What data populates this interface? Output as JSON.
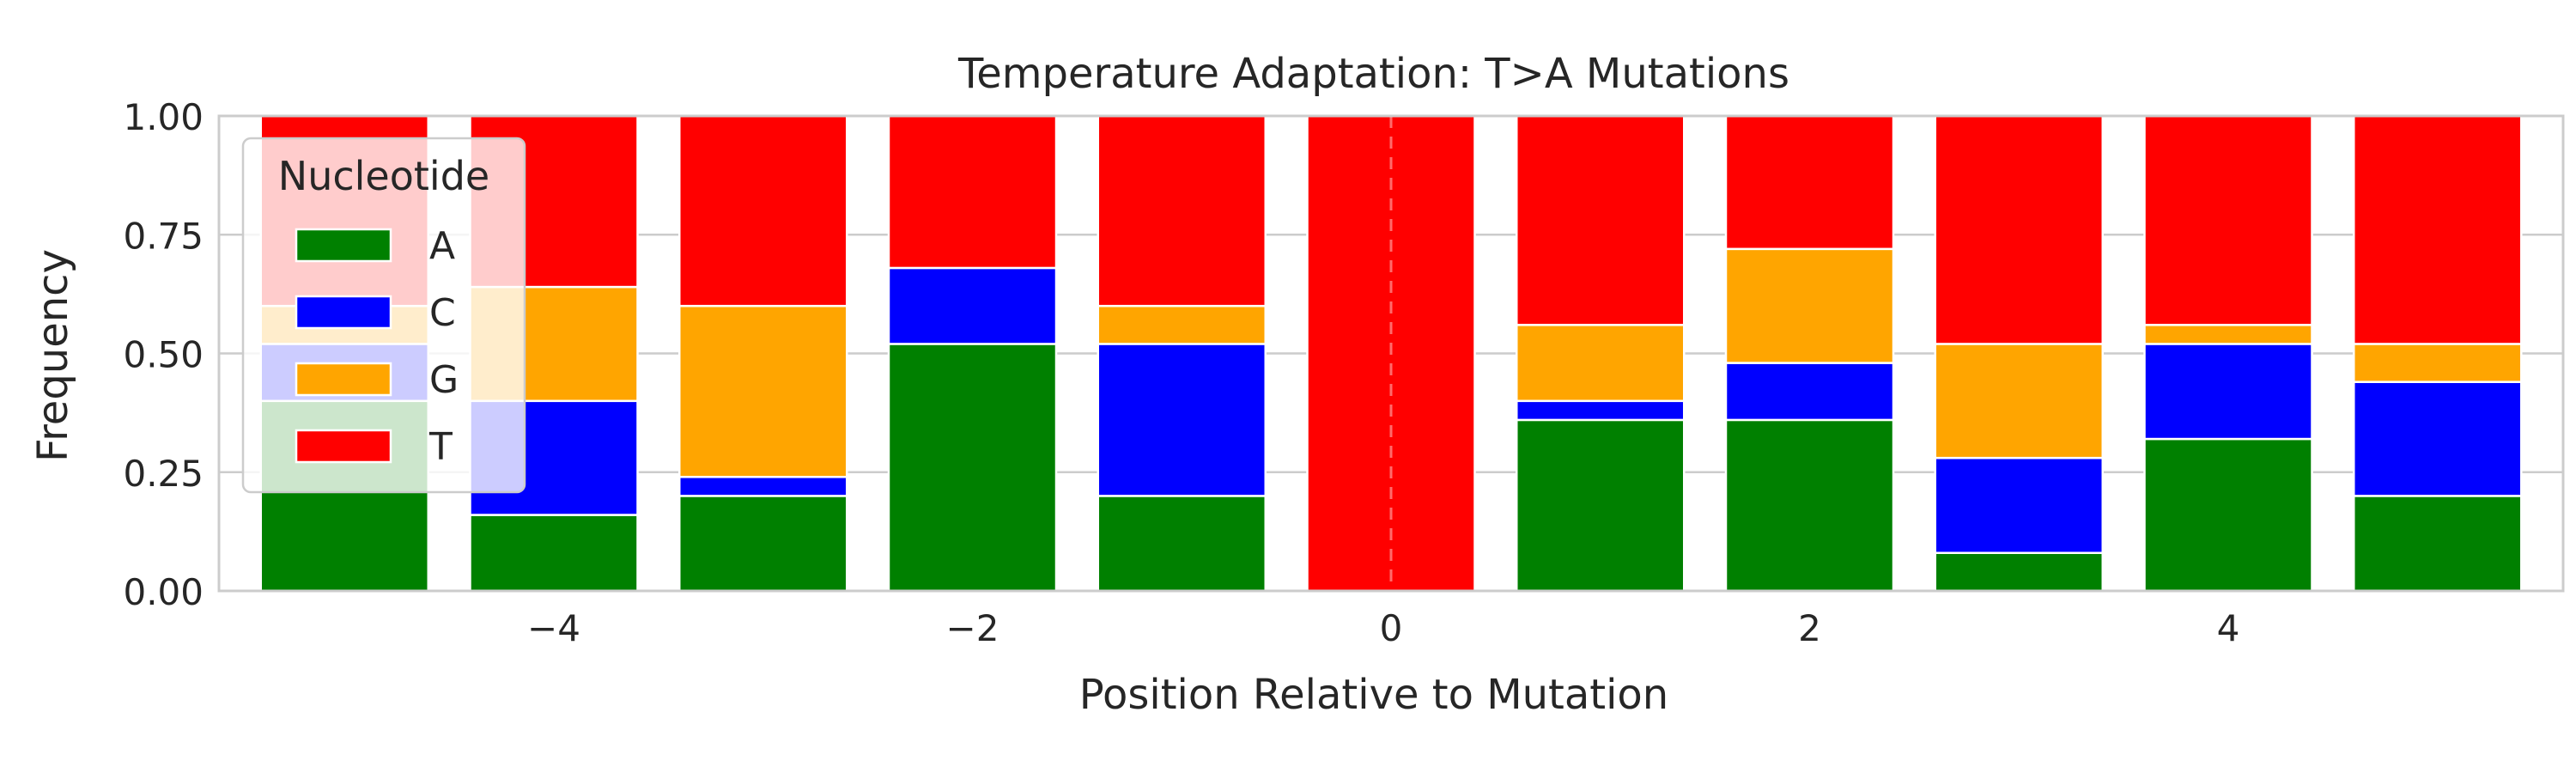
{
  "chart_data": {
    "type": "bar",
    "stacked": true,
    "title": "Temperature Adaptation: T>A Mutations",
    "xlabel": "Position Relative to Mutation",
    "ylabel": "Frequency",
    "x": [
      -5,
      -4,
      -3,
      -2,
      -1,
      0,
      1,
      2,
      3,
      4,
      5
    ],
    "xlim": [
      -5.6,
      5.6
    ],
    "ylim": [
      0,
      1
    ],
    "xticks": [
      -4,
      -2,
      0,
      2,
      4
    ],
    "xtick_labels": [
      "−4",
      "−2",
      "0",
      "2",
      "4"
    ],
    "yticks": [
      0,
      0.25,
      0.5,
      0.75,
      1.0
    ],
    "ytick_labels": [
      "0.00",
      "0.25",
      "0.50",
      "0.75",
      "1.00"
    ],
    "grid": true,
    "mutation_line_x": 0,
    "legend": {
      "title": "Nucleotide",
      "position": "top-left"
    },
    "series": [
      {
        "name": "A",
        "color": "#008000",
        "values": [
          0.4,
          0.16,
          0.2,
          0.52,
          0.2,
          0.0,
          0.36,
          0.36,
          0.08,
          0.32,
          0.2
        ]
      },
      {
        "name": "C",
        "color": "#0000ff",
        "values": [
          0.12,
          0.24,
          0.04,
          0.16,
          0.32,
          0.0,
          0.04,
          0.12,
          0.2,
          0.2,
          0.24
        ]
      },
      {
        "name": "G",
        "color": "#ffa500",
        "values": [
          0.08,
          0.24,
          0.36,
          0.0,
          0.08,
          0.0,
          0.16,
          0.24,
          0.24,
          0.04,
          0.08
        ]
      },
      {
        "name": "T",
        "color": "#ff0000",
        "values": [
          0.4,
          0.36,
          0.4,
          0.32,
          0.4,
          1.0,
          0.44,
          0.28,
          0.48,
          0.44,
          0.48
        ]
      }
    ]
  }
}
